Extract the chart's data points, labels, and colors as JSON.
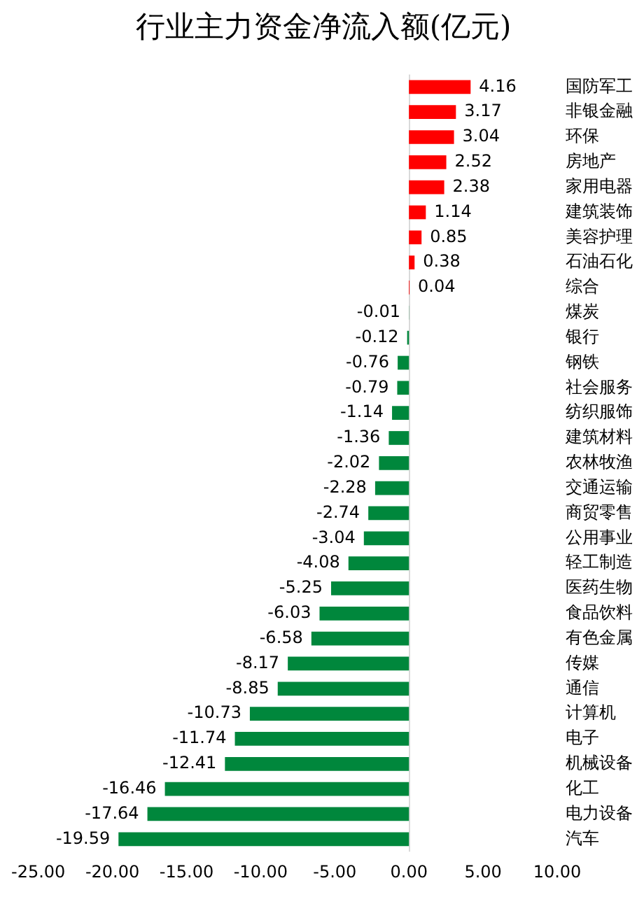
{
  "chart_data": {
    "type": "bar",
    "orientation": "horizontal",
    "title": "行业主力资金净流入额(亿元)",
    "categories": [
      "国防军工",
      "非银金融",
      "环保",
      "房地产",
      "家用电器",
      "建筑装饰",
      "美容护理",
      "石油石化",
      "综合",
      "煤炭",
      "银行",
      "钢铁",
      "社会服务",
      "纺织服饰",
      "建筑材料",
      "农林牧渔",
      "交通运输",
      "商贸零售",
      "公用事业",
      "轻工制造",
      "医药生物",
      "食品饮料",
      "有色金属",
      "传媒",
      "通信",
      "计算机",
      "电子",
      "机械设备",
      "化工",
      "电力设备",
      "汽车"
    ],
    "values": [
      4.16,
      3.17,
      3.04,
      2.52,
      2.38,
      1.14,
      0.85,
      0.38,
      0.04,
      -0.01,
      -0.12,
      -0.76,
      -0.79,
      -1.14,
      -1.36,
      -2.02,
      -2.28,
      -2.74,
      -3.04,
      -4.08,
      -5.25,
      -6.03,
      -6.58,
      -8.17,
      -8.85,
      -10.73,
      -11.74,
      -12.41,
      -16.46,
      -17.64,
      -19.59
    ],
    "colors": [
      "#ff0000",
      "#ff0000",
      "#ff0000",
      "#ff0000",
      "#ff0000",
      "#ff0000",
      "#ff0000",
      "#ff0000",
      "#ff0000",
      "#00873c",
      "#00873c",
      "#00873c",
      "#00873c",
      "#00873c",
      "#00873c",
      "#00873c",
      "#00873c",
      "#00873c",
      "#00873c",
      "#00873c",
      "#00873c",
      "#00873c",
      "#00873c",
      "#00873c",
      "#00873c",
      "#00873c",
      "#00873c",
      "#00873c",
      "#00873c",
      "#00873c",
      "#00873c"
    ],
    "xlim": [
      -25,
      10
    ],
    "xticks": [
      {
        "value": -25,
        "label": "-25.00"
      },
      {
        "value": -20,
        "label": "-20.00"
      },
      {
        "value": -15,
        "label": "-15.00"
      },
      {
        "value": -10,
        "label": "-10.00"
      },
      {
        "value": -5,
        "label": "-5.00"
      },
      {
        "value": 0,
        "label": "0.00"
      },
      {
        "value": 5,
        "label": "5.00"
      },
      {
        "value": 10,
        "label": "10.00"
      }
    ],
    "data_labels": true
  }
}
